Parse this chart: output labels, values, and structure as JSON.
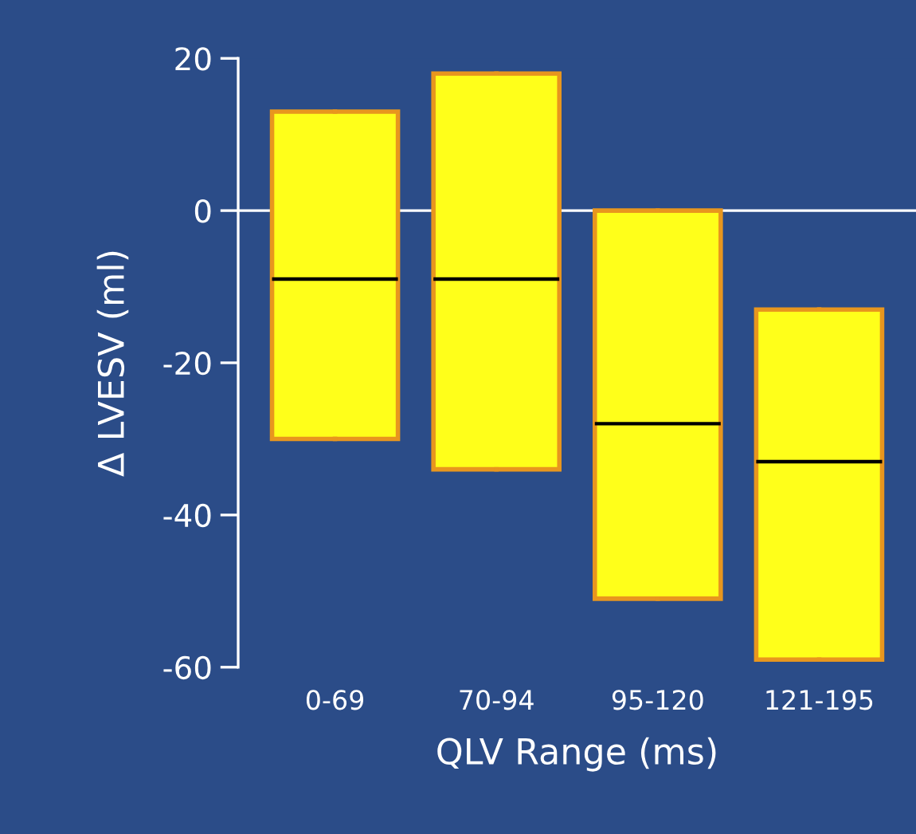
{
  "chart_data": {
    "type": "box",
    "xlabel": "QLV Range (ms)",
    "ylabel": "Δ LVESV (ml)",
    "categories": [
      "0-69",
      "70-94",
      "95-120",
      "121-195"
    ],
    "boxes": [
      {
        "low": -30,
        "q1": -30,
        "median": -9,
        "q3": 13,
        "high": 13
      },
      {
        "low": -34,
        "q1": -34,
        "median": -9,
        "q3": 18,
        "high": 18
      },
      {
        "low": -51,
        "q1": -51,
        "median": -28,
        "q3": 0,
        "high": 0
      },
      {
        "low": -59,
        "q1": -59,
        "median": -33,
        "q3": -13,
        "high": -13
      }
    ],
    "color": "#ffff1a",
    "ylim": [
      -60,
      20
    ],
    "yticks": [
      -60,
      -40,
      -20,
      0,
      20
    ],
    "ref_lines": [
      {
        "axis": "y",
        "value": 0,
        "label": null,
        "color": "#ffffff"
      }
    ],
    "grid": false
  }
}
